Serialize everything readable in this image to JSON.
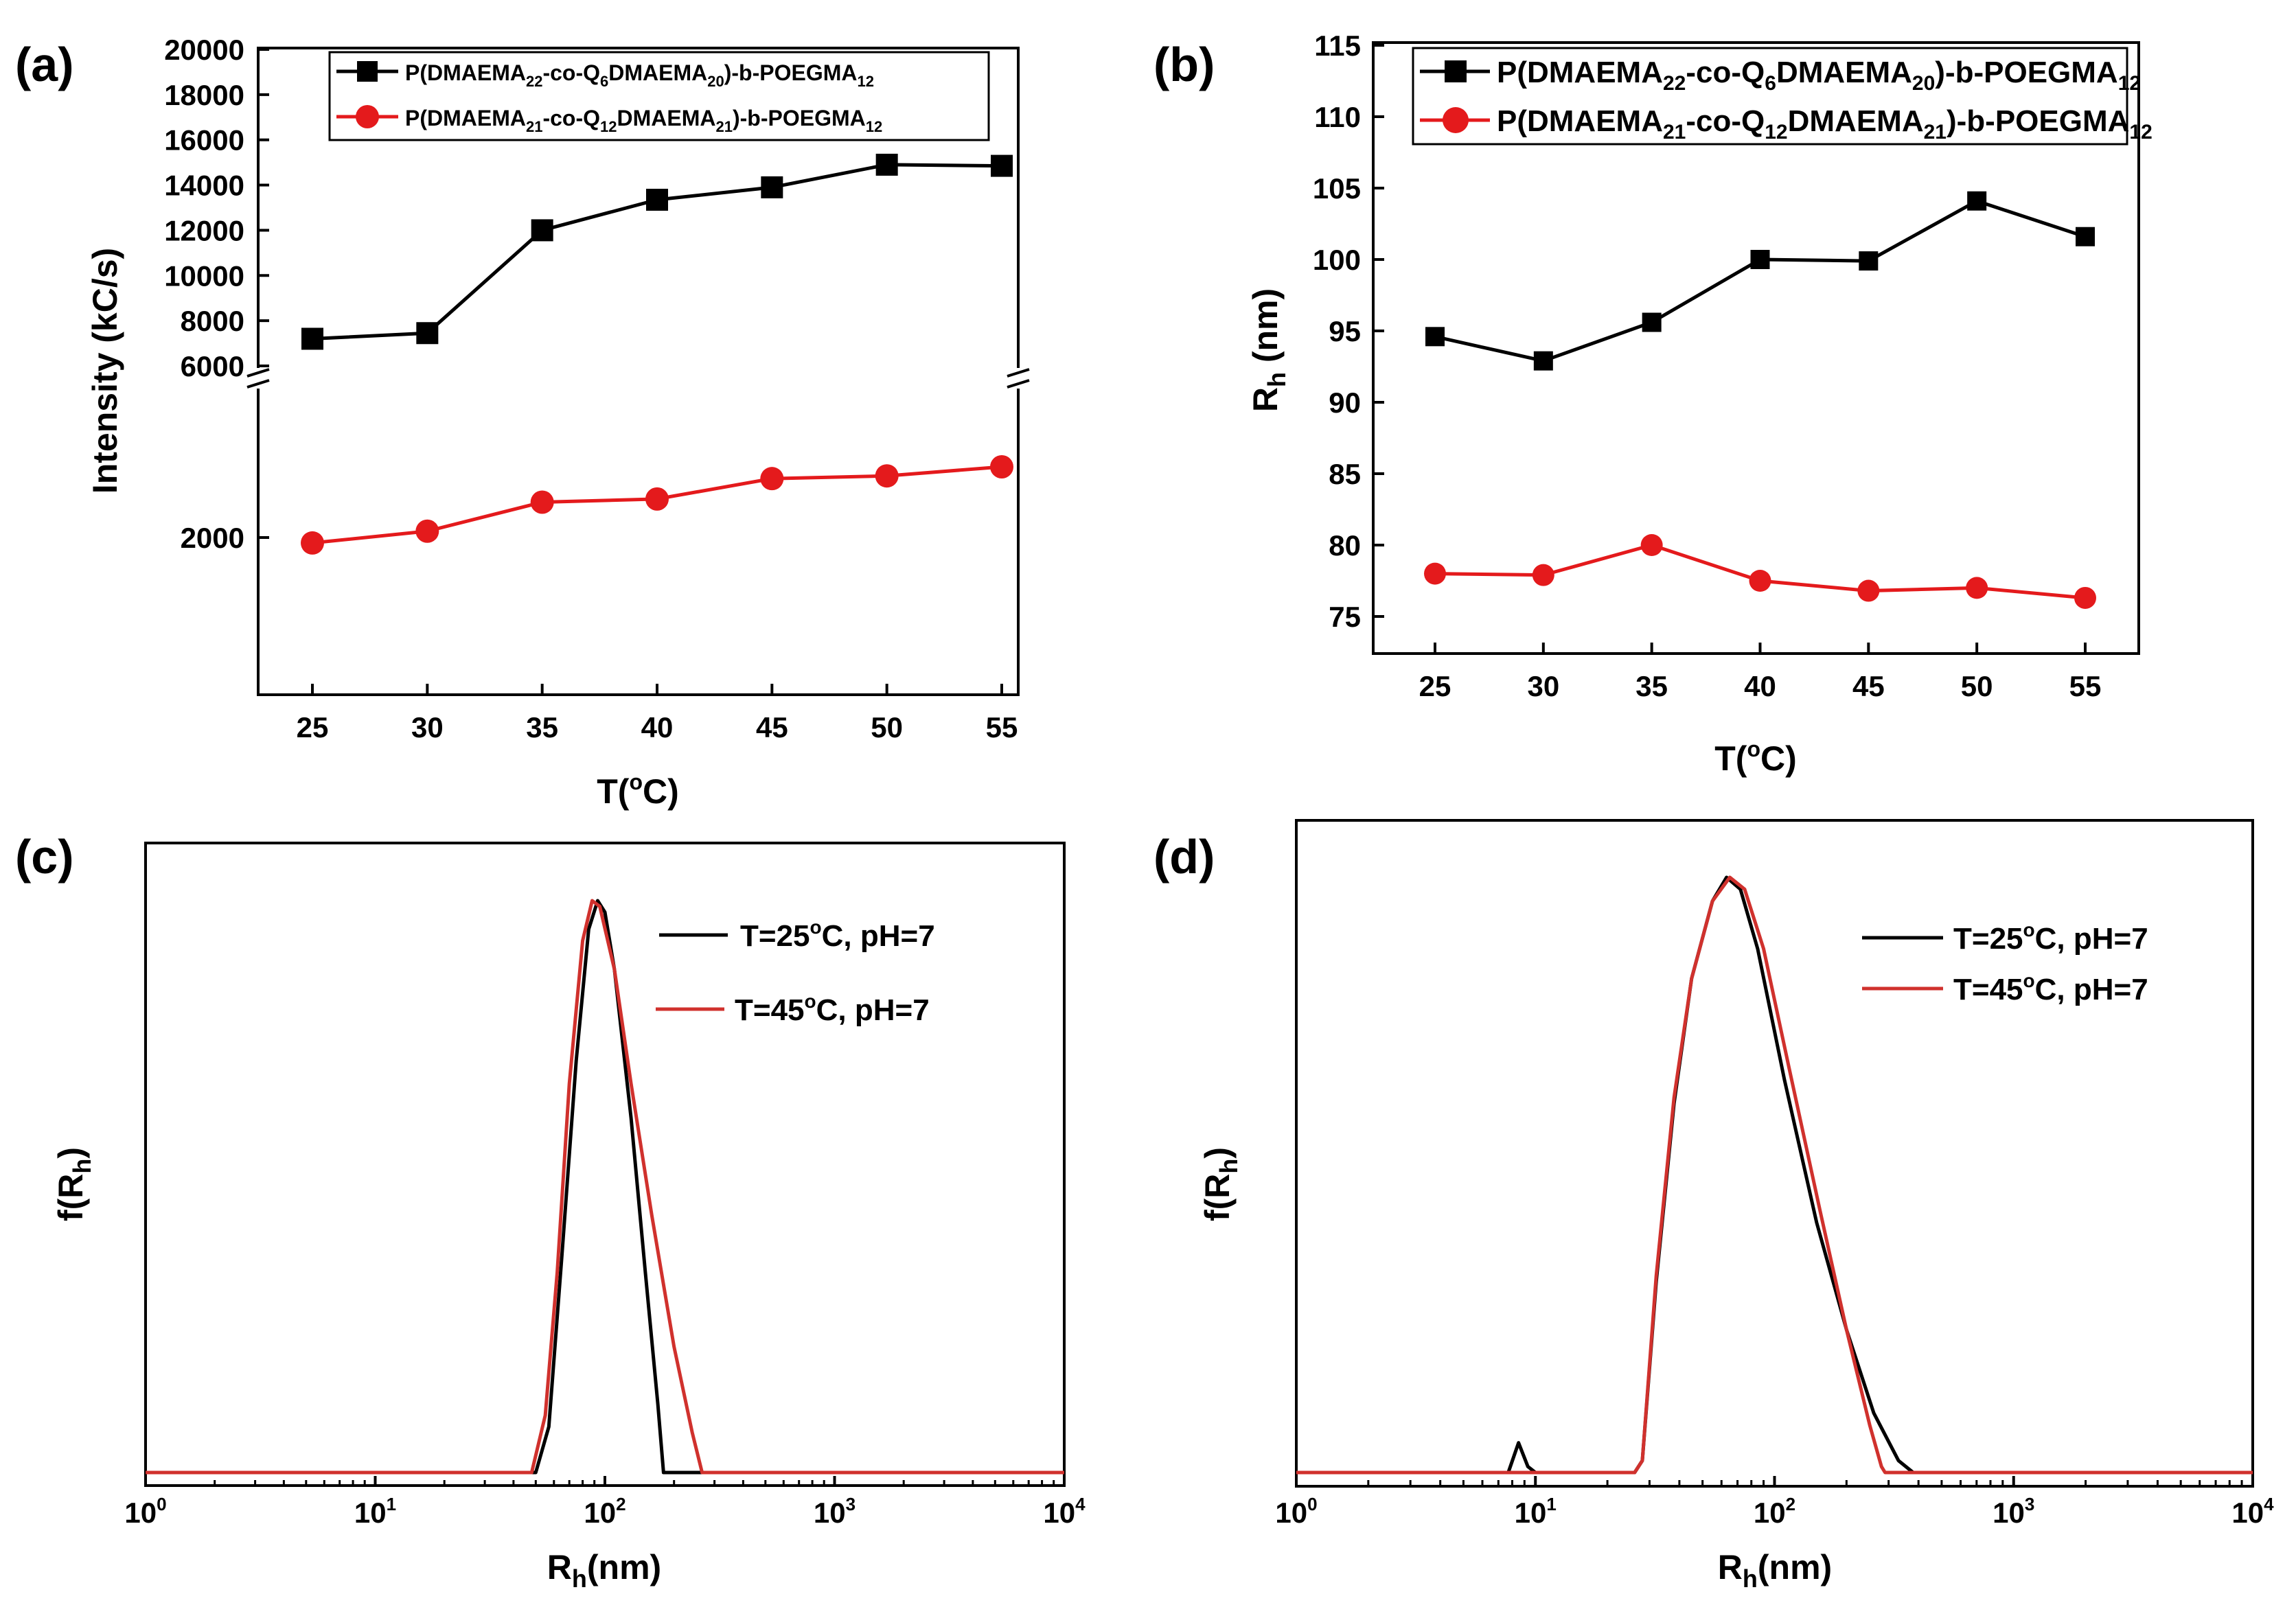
{
  "colors": {
    "black_series": "#000000",
    "red_series": "#e41a1c",
    "red_line": "#d0312d"
  },
  "chart_data": [
    {
      "panel": "(a)",
      "type": "line",
      "xlabel": "T(°C)",
      "ylabel": "Intensity (kC/s)",
      "x": [
        25,
        30,
        35,
        40,
        45,
        50,
        55
      ],
      "x_ticks": [
        "25",
        "30",
        "35",
        "40",
        "45",
        "50",
        "55"
      ],
      "y_ticks_upper": [
        "6000",
        "8000",
        "10000",
        "12000",
        "14000",
        "16000",
        "18000",
        "20000"
      ],
      "y_ticks_lower": [
        "2000"
      ],
      "y_axis_break": true,
      "series": [
        {
          "name": "P(DMAEMA22-co-Q6DMAEMA20)-b-POEGMA12",
          "marker": "square",
          "color": "#000000",
          "values": [
            7200,
            7450,
            12000,
            13350,
            13900,
            14900,
            14850
          ]
        },
        {
          "name": "P(DMAEMA21-co-Q12DMAEMA21)-b-POEGMA12",
          "marker": "circle",
          "color": "#e41a1c",
          "values": [
            1880,
            2140,
            2780,
            2850,
            3300,
            3360,
            3560
          ]
        }
      ],
      "legend": [
        {
          "pre": "P(DMAEMA",
          "s1": "22",
          "mid1": "-co-Q",
          "s2": "6",
          "mid2": "DMAEMA",
          "s3": "20",
          "post": ")-b-POEGMA",
          "s4": "12"
        },
        {
          "pre": "P(DMAEMA",
          "s1": "21",
          "mid1": "-co-Q",
          "s2": "12",
          "mid2": "DMAEMA",
          "s3": "21",
          "post": ")-b-POEGMA",
          "s4": "12"
        }
      ]
    },
    {
      "panel": "(b)",
      "type": "line",
      "xlabel": "T(°C)",
      "ylabel": "Rh (nm)",
      "ylim": [
        73,
        115
      ],
      "x": [
        25,
        30,
        35,
        40,
        45,
        50,
        55
      ],
      "x_ticks": [
        "25",
        "30",
        "35",
        "40",
        "45",
        "50",
        "55"
      ],
      "y_ticks": [
        "75",
        "80",
        "85",
        "90",
        "95",
        "100",
        "105",
        "110",
        "115"
      ],
      "series": [
        {
          "name": "P(DMAEMA22-co-Q6DMAEMA20)-b-POEGMA12",
          "marker": "square",
          "color": "#000000",
          "values": [
            94.6,
            92.9,
            95.6,
            100.0,
            99.9,
            104.1,
            101.6
          ]
        },
        {
          "name": "P(DMAEMA21-co-Q12DMAEMA21)-b-POEGMA12",
          "marker": "circle",
          "color": "#e41a1c",
          "values": [
            78.0,
            77.9,
            80.0,
            77.5,
            76.8,
            77.0,
            76.3
          ]
        }
      ]
    },
    {
      "panel": "(c)",
      "type": "line",
      "xscale": "log",
      "xlim": [
        1,
        10000
      ],
      "xlabel": "Rh(nm)",
      "ylabel": "f(Rh)",
      "x_ticks": [
        {
          "base": "10",
          "exp": "0"
        },
        {
          "base": "10",
          "exp": "1"
        },
        {
          "base": "10",
          "exp": "2"
        },
        {
          "base": "10",
          "exp": "3"
        },
        {
          "base": "10",
          "exp": "4"
        }
      ],
      "series": [
        {
          "name": "T=25°C, pH=7",
          "color": "#000000",
          "points": [
            [
              1,
              0
            ],
            [
              50,
              0
            ],
            [
              57,
              0.08
            ],
            [
              65,
              0.38
            ],
            [
              75,
              0.72
            ],
            [
              85,
              0.95
            ],
            [
              93,
              1.0
            ],
            [
              100,
              0.98
            ],
            [
              110,
              0.88
            ],
            [
              130,
              0.62
            ],
            [
              150,
              0.35
            ],
            [
              170,
              0.12
            ],
            [
              180,
              0
            ],
            [
              10000,
              0
            ]
          ]
        },
        {
          "name": "T=45°C, pH=7",
          "color": "#d0312d",
          "points": [
            [
              1,
              0
            ],
            [
              48,
              0
            ],
            [
              55,
              0.1
            ],
            [
              62,
              0.35
            ],
            [
              70,
              0.68
            ],
            [
              80,
              0.93
            ],
            [
              88,
              1.0
            ],
            [
              95,
              0.99
            ],
            [
              110,
              0.88
            ],
            [
              130,
              0.68
            ],
            [
              160,
              0.45
            ],
            [
              200,
              0.22
            ],
            [
              240,
              0.07
            ],
            [
              265,
              0
            ],
            [
              10000,
              0
            ]
          ]
        }
      ],
      "legend": [
        {
          "t": "T=25",
          "deg": "o",
          "rest": "C, pH=7"
        },
        {
          "t": "T=45",
          "deg": "o",
          "rest": "C, pH=7"
        }
      ]
    },
    {
      "panel": "(d)",
      "type": "line",
      "xscale": "log",
      "xlim": [
        1,
        10000
      ],
      "xlabel": "Rh(nm)",
      "ylabel": "f(Rh)",
      "x_ticks": [
        {
          "base": "10",
          "exp": "0"
        },
        {
          "base": "10",
          "exp": "1"
        },
        {
          "base": "10",
          "exp": "2"
        },
        {
          "base": "10",
          "exp": "3"
        },
        {
          "base": "10",
          "exp": "4"
        }
      ],
      "series": [
        {
          "name": "T=25°C, pH=7",
          "color": "#000000",
          "points": [
            [
              1,
              0
            ],
            [
              7.7,
              0
            ],
            [
              8.5,
              0.05
            ],
            [
              9.3,
              0.01
            ],
            [
              10,
              0
            ],
            [
              26,
              0
            ],
            [
              28,
              0.02
            ],
            [
              32,
              0.32
            ],
            [
              38,
              0.62
            ],
            [
              45,
              0.83
            ],
            [
              55,
              0.96
            ],
            [
              63,
              1.0
            ],
            [
              72,
              0.98
            ],
            [
              85,
              0.88
            ],
            [
              110,
              0.66
            ],
            [
              150,
              0.42
            ],
            [
              200,
              0.24
            ],
            [
              260,
              0.1
            ],
            [
              330,
              0.02
            ],
            [
              380,
              0
            ],
            [
              10000,
              0
            ]
          ]
        },
        {
          "name": "T=45°C, pH=7",
          "color": "#d0312d",
          "points": [
            [
              1,
              0
            ],
            [
              26,
              0
            ],
            [
              28,
              0.02
            ],
            [
              32,
              0.33
            ],
            [
              38,
              0.63
            ],
            [
              45,
              0.83
            ],
            [
              55,
              0.96
            ],
            [
              65,
              1.0
            ],
            [
              75,
              0.98
            ],
            [
              90,
              0.88
            ],
            [
              115,
              0.68
            ],
            [
              155,
              0.44
            ],
            [
              200,
              0.24
            ],
            [
              250,
              0.08
            ],
            [
              280,
              0.01
            ],
            [
              290,
              0
            ],
            [
              10000,
              0
            ]
          ]
        }
      ],
      "legend": [
        {
          "t": "T=25",
          "deg": "o",
          "rest": "C, pH=7"
        },
        {
          "t": "T=45",
          "deg": "o",
          "rest": "C, pH=7"
        }
      ]
    }
  ]
}
